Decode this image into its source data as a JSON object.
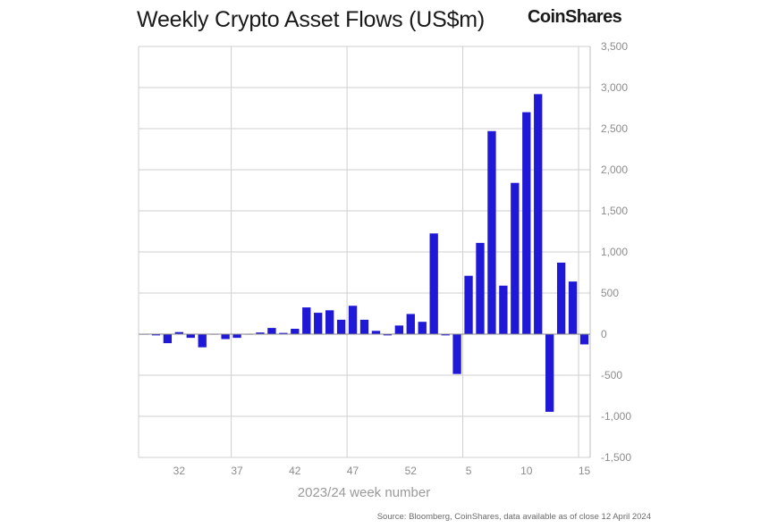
{
  "header": {
    "title": "Weekly Crypto Asset Flows (US$m)",
    "brand": "CoinShares"
  },
  "footer": {
    "source": "Source: Bloomberg, CoinShares, data available as of close 12 April 2024"
  },
  "colors": {
    "bar": "#1f18d6",
    "gridline": "#cfcfcf",
    "zero_line": "#888888",
    "tick_label": "#8c8c8c"
  },
  "chart_data": {
    "type": "bar",
    "title": "Weekly Crypto Asset Flows (US$m)",
    "xlabel": "2023/24 week number",
    "ylabel": "US$m",
    "ylim": [
      -1500,
      3500
    ],
    "yticks": [
      3500,
      3000,
      2500,
      2000,
      1500,
      1000,
      500,
      0,
      -500,
      -1000,
      -1500
    ],
    "ytick_labels": [
      "3,500",
      "3,000",
      "2,500",
      "2,000",
      "1,500",
      "1,000",
      "500",
      "0",
      "-500",
      "-1,000",
      "-1,500"
    ],
    "categories": [
      "29",
      "30",
      "31",
      "32",
      "33",
      "34",
      "35",
      "36",
      "37",
      "38",
      "39",
      "40",
      "41",
      "42",
      "43",
      "44",
      "45",
      "46",
      "47",
      "48",
      "49",
      "50",
      "51",
      "52",
      "1",
      "2",
      "3",
      "4",
      "5",
      "6",
      "7",
      "8",
      "9",
      "10",
      "11",
      "12",
      "13",
      "14",
      "15"
    ],
    "xtick_labels": [
      "32",
      "37",
      "42",
      "47",
      "52",
      "5",
      "10",
      "15"
    ],
    "vertical_gridlines_after": [
      "36",
      "46",
      "4",
      "14"
    ],
    "values": [
      -5,
      -15,
      -110,
      25,
      -45,
      -160,
      -5,
      -60,
      -45,
      0,
      20,
      75,
      15,
      65,
      325,
      260,
      290,
      175,
      345,
      175,
      40,
      -15,
      105,
      245,
      150,
      1225,
      -15,
      -485,
      710,
      1110,
      2470,
      590,
      1840,
      2700,
      2920,
      -945,
      870,
      640,
      -125
    ]
  }
}
